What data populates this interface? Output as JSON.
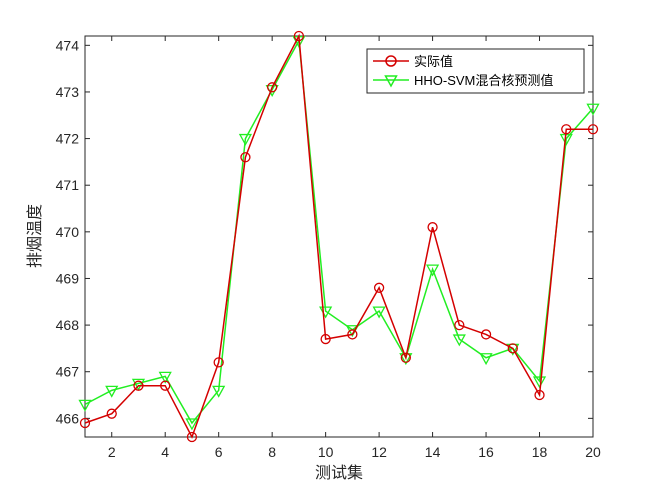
{
  "chart_data": {
    "type": "line",
    "xlabel": "测试集",
    "ylabel": "排烟温度",
    "xlim": [
      1,
      20
    ],
    "ylim": [
      465.6,
      474.2
    ],
    "xticks": [
      2,
      4,
      6,
      8,
      10,
      12,
      14,
      16,
      18,
      20
    ],
    "yticks": [
      466,
      467,
      468,
      469,
      470,
      471,
      472,
      473,
      474
    ],
    "grid": false,
    "legend_position": "top-right",
    "x": [
      1,
      2,
      3,
      4,
      5,
      6,
      7,
      8,
      9,
      10,
      11,
      12,
      13,
      14,
      15,
      16,
      17,
      18,
      19,
      20
    ],
    "series": [
      {
        "name": "实际值",
        "color": "#d40000",
        "marker": "circle",
        "values": [
          465.9,
          466.1,
          466.7,
          466.7,
          465.6,
          467.2,
          471.6,
          473.1,
          474.2,
          467.7,
          467.8,
          468.8,
          467.3,
          470.1,
          468.0,
          467.8,
          467.5,
          466.5,
          472.2,
          472.2
        ]
      },
      {
        "name": "HHO-SVM混合核预测值",
        "color": "#22ee22",
        "marker": "triangle-down",
        "values": [
          466.3,
          466.6,
          466.75,
          466.9,
          465.9,
          466.6,
          472.0,
          473.05,
          474.1,
          468.3,
          467.9,
          468.3,
          467.3,
          469.2,
          467.7,
          467.3,
          467.5,
          466.8,
          472.0,
          472.65
        ]
      }
    ]
  }
}
